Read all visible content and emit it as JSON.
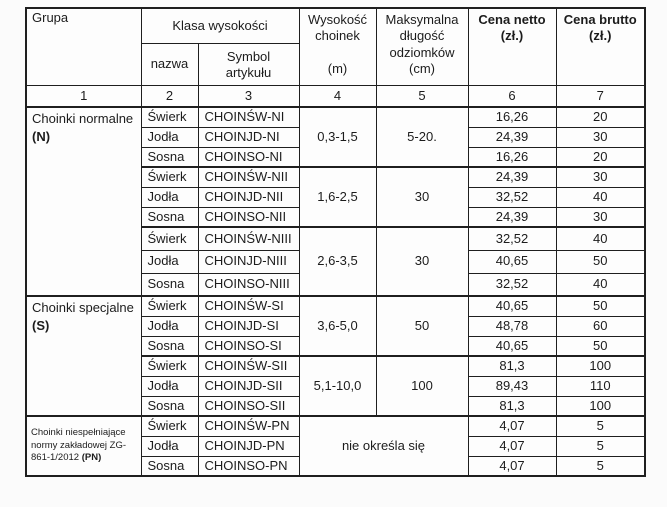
{
  "colors": {
    "border": "#1f1f1f",
    "text": "#1c1c1c",
    "paper": "#fbfbfb"
  },
  "header": {
    "grupa": "Grupa",
    "klasa_wysokosci": "Klasa wysokości",
    "nazwa": "nazwa",
    "symbol_artykulu": "Symbol\nartykułu",
    "wysokosc_choinek": "Wysokość\nchoinek\n\n(m)",
    "maksymalna_dlugosc": "Maksymalna\ndługość\nodziomków\n(cm)",
    "cena_netto": "Cena netto\n(zł.)",
    "cena_brutto": "Cena brutto\n(zł.)",
    "numbers": [
      "1",
      "2",
      "3",
      "4",
      "5",
      "6",
      "7"
    ]
  },
  "groups": [
    {
      "name": "Choinki normalne",
      "code": "(N)"
    },
    {
      "name": "Choinki specjalne",
      "code": "(S)"
    },
    {
      "name": "Choinki niespełniające normy zakładowej ZG-861-1/2012",
      "code": "(PN)"
    }
  ],
  "spans": [
    {
      "height": "0,3-1,5",
      "max_length": "5-20."
    },
    {
      "height": "1,6-2,5",
      "max_length": "30"
    },
    {
      "height": "2,6-3,5",
      "max_length": "30"
    },
    {
      "height": "3,6-5,0",
      "max_length": "50"
    },
    {
      "height": "5,1-10,0",
      "max_length": "100"
    },
    {
      "no_spec": "nie określa się"
    }
  ],
  "rows": [
    {
      "species": "Świerk",
      "symbol": "CHOINŚW-NI",
      "netto": "16,26",
      "brutto": "20"
    },
    {
      "species": "Jodła",
      "symbol": "CHOINJD-NI",
      "netto": "24,39",
      "brutto": "30"
    },
    {
      "species": "Sosna",
      "symbol": "CHOINSO-NI",
      "netto": "16,26",
      "brutto": "20"
    },
    {
      "species": "Świerk",
      "symbol": "CHOINŚW-NII",
      "netto": "24,39",
      "brutto": "30"
    },
    {
      "species": "Jodła",
      "symbol": "CHOINJD-NII",
      "netto": "32,52",
      "brutto": "40"
    },
    {
      "species": "Sosna",
      "symbol": "CHOINSO-NII",
      "netto": "24,39",
      "brutto": "30"
    },
    {
      "species": "Świerk",
      "symbol": "CHOINŚW-NIII",
      "netto": "32,52",
      "brutto": "40"
    },
    {
      "species": "Jodła",
      "symbol": "CHOINJD-NIII",
      "netto": "40,65",
      "brutto": "50"
    },
    {
      "species": "Sosna",
      "symbol": "CHOINSO-NIII",
      "netto": "32,52",
      "brutto": "40"
    },
    {
      "species": "Świerk",
      "symbol": "CHOINŚW-SI",
      "netto": "40,65",
      "brutto": "50"
    },
    {
      "species": "Jodła",
      "symbol": "CHOINJD-SI",
      "netto": "48,78",
      "brutto": "60"
    },
    {
      "species": "Sosna",
      "symbol": "CHOINSO-SI",
      "netto": "40,65",
      "brutto": "50"
    },
    {
      "species": "Świerk",
      "symbol": "CHOINŚW-SII",
      "netto": "81,3",
      "brutto": "100"
    },
    {
      "species": "Jodła",
      "symbol": "CHOINJD-SII",
      "netto": "89,43",
      "brutto": "110"
    },
    {
      "species": "Sosna",
      "symbol": "CHOINSO-SII",
      "netto": "81,3",
      "brutto": "100"
    },
    {
      "species": "Świerk",
      "symbol": "CHOINŚW-PN",
      "netto": "4,07",
      "brutto": "5"
    },
    {
      "species": "Jodła",
      "symbol": "CHOINJD-PN",
      "netto": "4,07",
      "brutto": "5"
    },
    {
      "species": "Sosna",
      "symbol": "CHOINSO-PN",
      "netto": "4,07",
      "brutto": "5"
    }
  ]
}
